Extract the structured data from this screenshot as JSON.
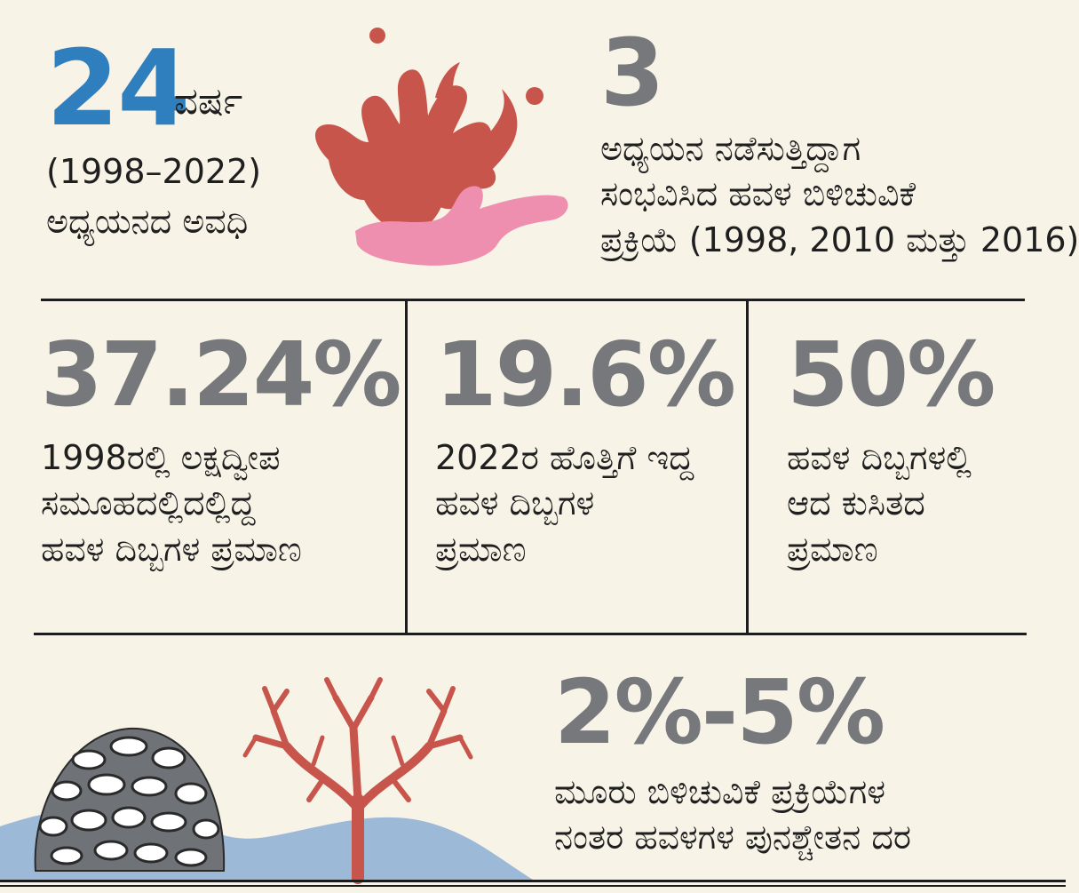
{
  "top_left": {
    "number": "24",
    "unit": "ವರ್ಷ",
    "range": "(1998–2022)",
    "caption": "ಅಧ್ಯಯನದ ಅವಧಿ"
  },
  "top_right": {
    "number": "3",
    "lines": [
      "ಅಧ್ಯಯನ ನಡೆಸುತ್ತಿದ್ದಾಗ",
      "ಸಂಭವಿಸಿದ ಹವಳ ಬಿಳಿಚುವಿಕೆ",
      "ಪ್ರಕ್ರಿಯೆ (1998, 2010 ಮತ್ತು 2016)"
    ]
  },
  "stats": [
    {
      "number": "37.24%",
      "lines": [
        "1998ರಲ್ಲಿ ಲಕ್ಷದ್ವೀಪ",
        "ಸಮೂಹದಲ್ಲಿದಲ್ಲಿದ್ದ",
        "ಹವಳ ದಿಬ್ಬಗಳ ಪ್ರಮಾಣ"
      ]
    },
    {
      "number": "19.6%",
      "lines": [
        "2022ರ ಹೊತ್ತಿಗೆ ಇದ್ದ",
        "ಹವಳ ದಿಬ್ಬಗಳ",
        "ಪ್ರಮಾಣ"
      ]
    },
    {
      "number": "50%",
      "lines": [
        "ಹವಳ ದಿಬ್ಬಗಳಲ್ಲಿ",
        "ಆದ ಕುಸಿತದ",
        "ಪ್ರಮಾಣ"
      ]
    }
  ],
  "bottom": {
    "number": "2%-5%",
    "lines": [
      "ಮೂರು ಬಿಳಿಚುವಿಕೆ ಪ್ರಕ್ರಿಯೆಗಳ",
      "ನಂತರ ಹವಳಗಳ ಪುನಶ್ಚೇತನ ದರ"
    ]
  },
  "colors": {
    "accent_blue": "#2f7ebd",
    "stat_gray": "#77787b",
    "coral_red": "#c8554b",
    "coral_pink": "#ee8fb0",
    "water_blue": "#9db9d8",
    "background": "#f7f3e7"
  },
  "icons": [
    "coral-illustration",
    "brain-coral-illustration",
    "branch-coral-illustration",
    "water-wave"
  ]
}
